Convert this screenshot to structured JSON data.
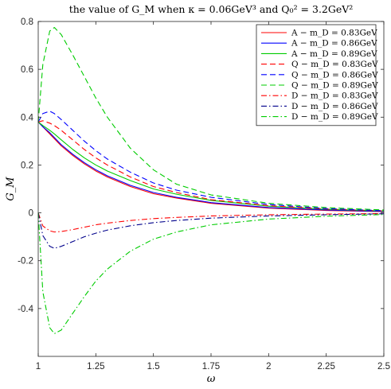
{
  "chart_data": {
    "type": "line",
    "title": "the value of G_M when κ = 0.06GeV³ and Q₀² = 3.2GeV²",
    "xlabel": "ω",
    "ylabel": "G_M",
    "xlim": [
      1,
      2.5
    ],
    "ylim": [
      -0.6,
      0.8
    ],
    "xticks": [
      1,
      1.25,
      1.5,
      1.75,
      2,
      2.25,
      2.5
    ],
    "xtick_labels": [
      "1",
      "1.25",
      "1.5",
      "1.75",
      "2",
      "2.25",
      "2.5"
    ],
    "yticks": [
      0.8,
      0.6,
      0.4,
      0.2,
      0,
      -0.2,
      -0.4
    ],
    "ytick_labels": [
      "0.8",
      "0.6",
      "0.4",
      "0.2",
      "0",
      "-0.2",
      "-0.4"
    ],
    "grid": false,
    "legend_position": "top-right",
    "x": [
      1.0,
      1.02,
      1.05,
      1.07,
      1.1,
      1.15,
      1.2,
      1.25,
      1.3,
      1.4,
      1.5,
      1.6,
      1.75,
      2.0,
      2.25,
      2.5
    ],
    "series": [
      {
        "name": "A − m_D = 0.83GeV",
        "color": "#ff0000",
        "dash": "solid",
        "values": [
          0.38,
          0.36,
          0.33,
          0.31,
          0.28,
          0.24,
          0.205,
          0.175,
          0.15,
          0.11,
          0.08,
          0.062,
          0.04,
          0.02,
          0.01,
          0.005
        ]
      },
      {
        "name": "A − m_D = 0.86GeV",
        "color": "#0000ff",
        "dash": "solid",
        "values": [
          0.38,
          0.36,
          0.335,
          0.315,
          0.285,
          0.245,
          0.21,
          0.18,
          0.155,
          0.115,
          0.085,
          0.065,
          0.043,
          0.022,
          0.012,
          0.006
        ]
      },
      {
        "name": "A − m_D = 0.89GeV",
        "color": "#00cc00",
        "dash": "solid",
        "values": [
          0.38,
          0.365,
          0.345,
          0.33,
          0.305,
          0.265,
          0.23,
          0.2,
          0.175,
          0.135,
          0.1,
          0.078,
          0.052,
          0.028,
          0.015,
          0.008
        ]
      },
      {
        "name": "Q − m_D = 0.83GeV",
        "color": "#ff0000",
        "dash": "dashed",
        "values": [
          0.38,
          0.385,
          0.375,
          0.365,
          0.345,
          0.305,
          0.265,
          0.23,
          0.2,
          0.15,
          0.11,
          0.085,
          0.055,
          0.03,
          0.016,
          0.008
        ]
      },
      {
        "name": "Q − m_D = 0.86GeV",
        "color": "#0000ff",
        "dash": "dashed",
        "values": [
          0.38,
          0.415,
          0.425,
          0.415,
          0.39,
          0.345,
          0.3,
          0.26,
          0.225,
          0.17,
          0.125,
          0.095,
          0.065,
          0.035,
          0.018,
          0.009
        ]
      },
      {
        "name": "Q − m_D = 0.89GeV",
        "color": "#00cc00",
        "dash": "dashed",
        "values": [
          0.38,
          0.62,
          0.76,
          0.775,
          0.745,
          0.66,
          0.57,
          0.48,
          0.4,
          0.27,
          0.18,
          0.12,
          0.075,
          0.04,
          0.022,
          0.012
        ]
      },
      {
        "name": "D − m_D = 0.83GeV",
        "color": "#ff0000",
        "dash": "dashdot",
        "values": [
          0.0,
          -0.055,
          -0.075,
          -0.08,
          -0.078,
          -0.07,
          -0.06,
          -0.05,
          -0.043,
          -0.032,
          -0.024,
          -0.019,
          -0.013,
          -0.008,
          -0.005,
          -0.003
        ]
      },
      {
        "name": "D − m_D = 0.86GeV",
        "color": "#00008b",
        "dash": "dashdot",
        "values": [
          0.0,
          -0.095,
          -0.14,
          -0.148,
          -0.14,
          -0.12,
          -0.1,
          -0.085,
          -0.072,
          -0.054,
          -0.041,
          -0.032,
          -0.022,
          -0.013,
          -0.008,
          -0.004
        ]
      },
      {
        "name": "D − m_D = 0.89GeV",
        "color": "#00cc00",
        "dash": "dashdot",
        "values": [
          0.0,
          -0.33,
          -0.48,
          -0.505,
          -0.49,
          -0.42,
          -0.35,
          -0.285,
          -0.235,
          -0.16,
          -0.11,
          -0.08,
          -0.05,
          -0.026,
          -0.014,
          -0.007
        ]
      }
    ]
  }
}
